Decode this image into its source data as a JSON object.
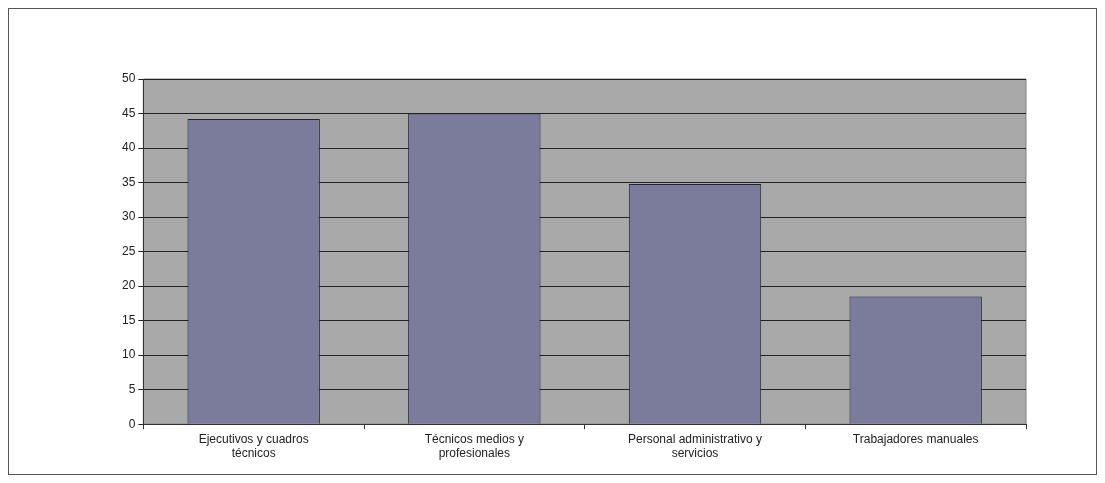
{
  "chart_data": {
    "type": "bar",
    "categories": [
      [
        "Ejecutivos y cuadros",
        "técnicos"
      ],
      [
        "Técnicos medios y",
        "profesionales"
      ],
      [
        "Personal administrativo y",
        "servicios"
      ],
      [
        "Trabajadores manuales"
      ]
    ],
    "values": [
      44.2,
      45,
      34.8,
      18.5
    ],
    "color": "#7b7b9b",
    "ylim": [
      0,
      50
    ],
    "yticks": [
      0,
      5,
      10,
      15,
      20,
      25,
      30,
      35,
      40,
      45,
      50
    ],
    "grid": "y",
    "legend": false
  }
}
